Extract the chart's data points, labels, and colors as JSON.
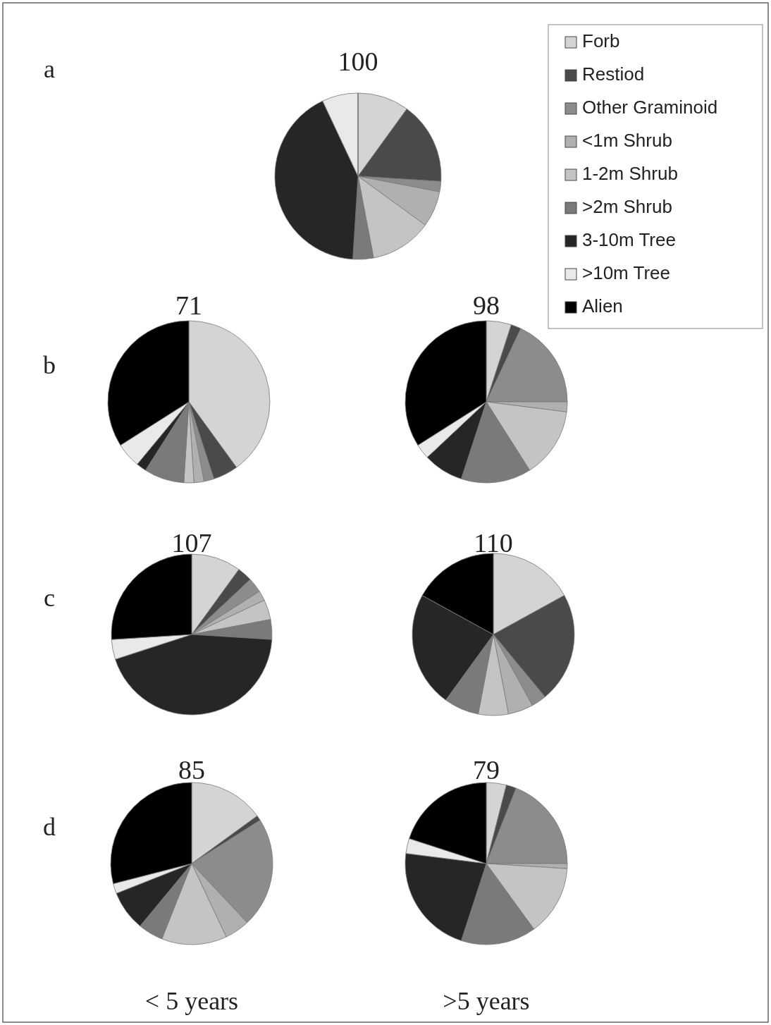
{
  "chart_data": [
    {
      "type": "pie",
      "title": "100",
      "categories": [
        "Forb",
        "Restiod",
        "Other Graminoid",
        "<1m Shrub",
        "1-2m Shrub",
        ">2m Shrub",
        "3-10m Tree",
        ">10m Tree",
        "Alien"
      ],
      "values": [
        10,
        16,
        2,
        7,
        12,
        4,
        42,
        7,
        0
      ],
      "colors": [
        "#d4d4d4",
        "#4a4a4a",
        "#8c8c8c",
        "#b0b0b0",
        "#c4c4c4",
        "#7a7a7a",
        "#262626",
        "#e9e9e9",
        "#000000"
      ],
      "legend": "top right",
      "annotations": [
        "a"
      ]
    },
    {
      "type": "pie",
      "title": "71",
      "categories": [
        null,
        null,
        null,
        null,
        null,
        null,
        null,
        null,
        null
      ],
      "values": [
        40,
        5,
        2,
        2,
        2,
        8,
        2,
        5,
        34
      ],
      "colors": [
        "#d4d4d4",
        "#4a4a4a",
        "#8c8c8c",
        "#b0b0b0",
        "#c4c4c4",
        "#7a7a7a",
        "#262626",
        "#e9e9e9",
        "#000000"
      ],
      "annotations": [
        "b"
      ]
    },
    {
      "type": "pie",
      "title": "98",
      "categories": [
        null,
        null,
        null,
        null,
        null,
        null,
        null,
        null,
        null
      ],
      "values": [
        5,
        2,
        18,
        2,
        14,
        14,
        8,
        3,
        34
      ],
      "colors": [
        "#d4d4d4",
        "#4a4a4a",
        "#8c8c8c",
        "#b0b0b0",
        "#c4c4c4",
        "#7a7a7a",
        "#262626",
        "#e9e9e9",
        "#000000"
      ]
    },
    {
      "type": "pie",
      "title": "107",
      "categories": [
        null,
        null,
        null,
        null,
        null,
        null,
        null,
        null,
        null
      ],
      "values": [
        10,
        3,
        3,
        2,
        4,
        4,
        44,
        4,
        26
      ],
      "colors": [
        "#d4d4d4",
        "#4a4a4a",
        "#8c8c8c",
        "#b0b0b0",
        "#c4c4c4",
        "#7a7a7a",
        "#262626",
        "#e9e9e9",
        "#000000"
      ],
      "annotations": [
        "c"
      ]
    },
    {
      "type": "pie",
      "title": "110",
      "categories": [
        null,
        null,
        null,
        null,
        null,
        null,
        null,
        null,
        null
      ],
      "values": [
        17,
        22,
        3,
        5,
        6,
        7,
        23,
        0,
        17
      ],
      "colors": [
        "#d4d4d4",
        "#4a4a4a",
        "#8c8c8c",
        "#b0b0b0",
        "#c4c4c4",
        "#7a7a7a",
        "#262626",
        "#e9e9e9",
        "#000000"
      ]
    },
    {
      "type": "pie",
      "title": "85",
      "categories": [
        null,
        null,
        null,
        null,
        null,
        null,
        null,
        null,
        null
      ],
      "values": [
        15,
        1,
        22,
        5,
        13,
        5,
        8,
        2,
        29
      ],
      "colors": [
        "#d4d4d4",
        "#4a4a4a",
        "#8c8c8c",
        "#b0b0b0",
        "#c4c4c4",
        "#7a7a7a",
        "#262626",
        "#e9e9e9",
        "#000000"
      ],
      "annotations": [
        "d",
        "< 5 years"
      ]
    },
    {
      "type": "pie",
      "title": "79",
      "categories": [
        null,
        null,
        null,
        null,
        null,
        null,
        null,
        null,
        null
      ],
      "values": [
        4,
        2,
        19,
        1,
        14,
        15,
        22,
        3,
        20
      ],
      "colors": [
        "#d4d4d4",
        "#4a4a4a",
        "#8c8c8c",
        "#b0b0b0",
        "#c4c4c4",
        "#7a7a7a",
        "#262626",
        "#e9e9e9",
        "#000000"
      ],
      "annotations": [
        ">5 years"
      ]
    }
  ]
}
